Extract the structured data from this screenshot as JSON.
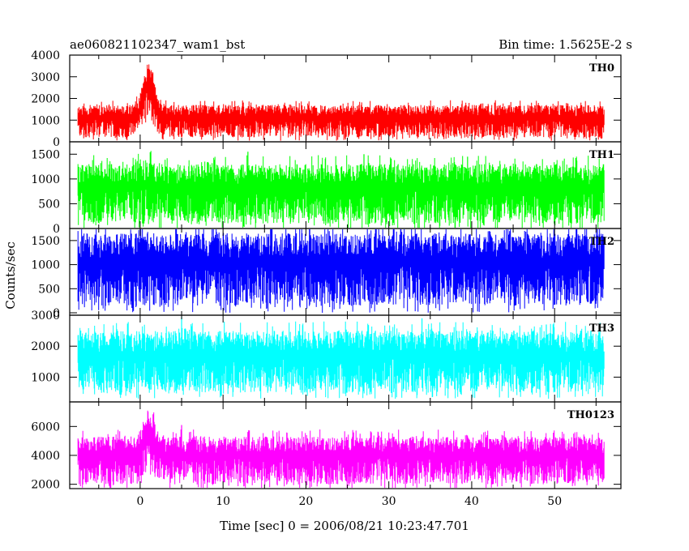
{
  "chart_data": {
    "type": "line",
    "title": "ae060821102347_wam1_bst",
    "subtitle": "Bin time: 1.5625E-2 s",
    "xlabel": "Time [sec] 0 = 2006/08/21 10:23:47.701",
    "ylabel": "Counts/sec",
    "xlim": [
      -8.5,
      58
    ],
    "x_ticks": [
      0,
      10,
      20,
      30,
      40,
      50
    ],
    "data_x_range": [
      -7.5,
      56
    ],
    "grid": false,
    "legend": "none",
    "panels": [
      {
        "name": "TH0",
        "color": "#ff0000",
        "ylim": [
          0,
          4000
        ],
        "y_ticks": [
          0,
          1000,
          2000,
          3000,
          4000
        ],
        "baseline": {
          "mean": 800,
          "min": 200,
          "max": 1700
        },
        "burst": {
          "peak_time": 1.0,
          "width": 0.9,
          "peak": 3600
        },
        "spikes": []
      },
      {
        "name": "TH1",
        "color": "#00ff00",
        "ylim": [
          0,
          1750
        ],
        "y_ticks": [
          0,
          500,
          1000,
          1500
        ],
        "baseline": {
          "mean": 650,
          "min": 100,
          "max": 1300
        },
        "burst": {
          "peak_time": 1.0,
          "width": 1.2,
          "peak": 1400
        },
        "spikes": [
          [
            39.5,
            1450
          ],
          [
            13.0,
            1550
          ],
          [
            27.0,
            1500
          ]
        ]
      },
      {
        "name": "TH2",
        "color": "#0000ff",
        "ylim": [
          -50,
          1750
        ],
        "y_ticks": [
          0,
          500,
          1000,
          1500
        ],
        "baseline": {
          "mean": 800,
          "min": 150,
          "max": 1650
        },
        "burst": null,
        "spikes": []
      },
      {
        "name": "TH3",
        "color": "#00ffff",
        "ylim": [
          200,
          3000
        ],
        "y_ticks": [
          1000,
          2000,
          3000
        ],
        "baseline": {
          "mean": 1400,
          "min": 500,
          "max": 2500
        },
        "burst": null,
        "spikes": [
          [
            34.0,
            2900
          ],
          [
            5.0,
            2950
          ],
          [
            49.0,
            2700
          ]
        ]
      },
      {
        "name": "TH0123",
        "color": "#ff00ff",
        "ylim": [
          1700,
          7700
        ],
        "y_ticks": [
          2000,
          4000,
          6000
        ],
        "baseline": {
          "mean": 3700,
          "min": 2000,
          "max": 5300
        },
        "burst": {
          "peak_time": 1.0,
          "width": 0.9,
          "peak": 7200
        },
        "spikes": [
          [
            5.0,
            6100
          ]
        ]
      }
    ]
  }
}
